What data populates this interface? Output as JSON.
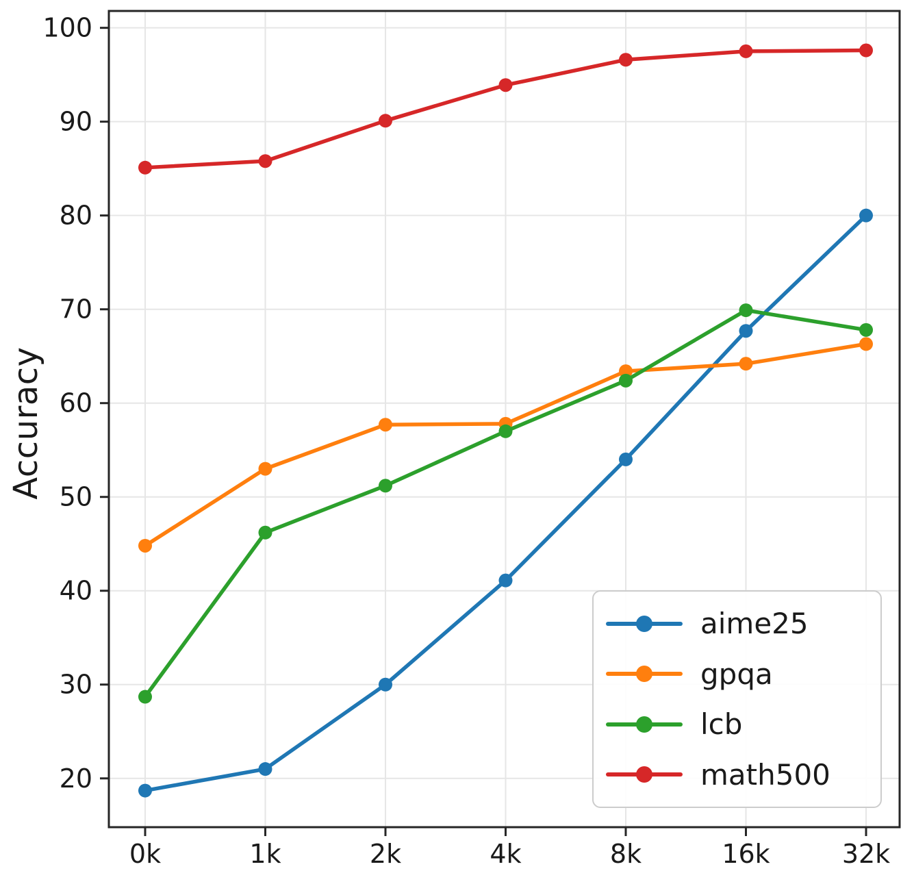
{
  "chart_data": {
    "type": "line",
    "title": "",
    "xlabel": "",
    "ylabel": "Accuracy",
    "x_tick_labels": [
      "0k",
      "1k",
      "2k",
      "4k",
      "8k",
      "16k",
      "32k"
    ],
    "y_ticks": [
      20,
      30,
      40,
      50,
      60,
      70,
      80,
      90,
      100
    ],
    "ylim": [
      14.8,
      101.8
    ],
    "grid": true,
    "grid_color": "#e6e6e6",
    "axis_color": "#262626",
    "text_color": "#1a1a1a",
    "legend_position": "lower right",
    "series": [
      {
        "name": "aime25",
        "color": "#1f77b4",
        "values": [
          18.7,
          21.0,
          30.0,
          41.1,
          54.0,
          67.7,
          80.0
        ]
      },
      {
        "name": "gpqa",
        "color": "#ff7f0e",
        "values": [
          44.8,
          53.0,
          57.7,
          57.8,
          63.4,
          64.2,
          66.3
        ]
      },
      {
        "name": "lcb",
        "color": "#2ca02c",
        "values": [
          28.7,
          46.2,
          51.2,
          57.0,
          62.4,
          69.9,
          67.8
        ]
      },
      {
        "name": "math500",
        "color": "#d62728",
        "values": [
          85.1,
          85.8,
          90.1,
          93.9,
          96.6,
          97.5,
          97.6
        ]
      }
    ]
  }
}
